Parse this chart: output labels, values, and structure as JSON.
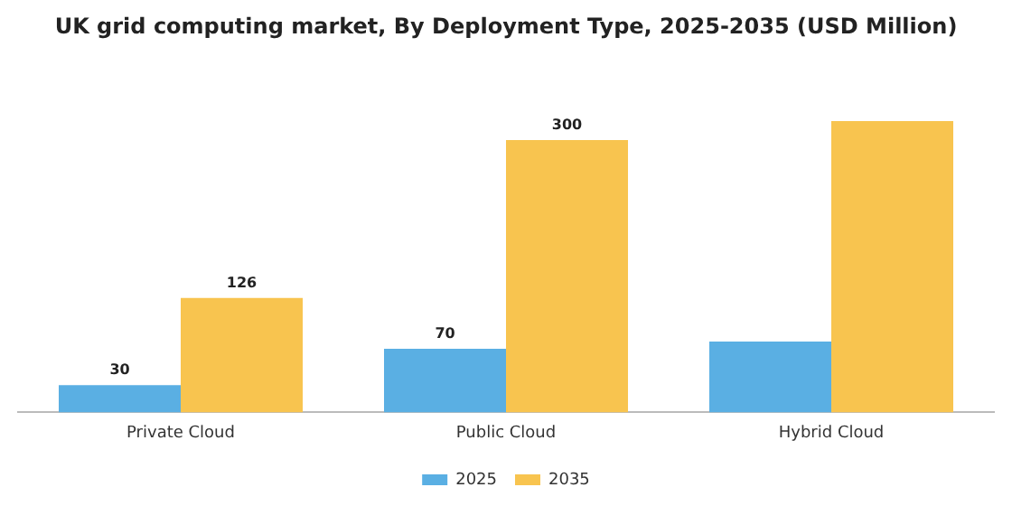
{
  "chart_data": {
    "type": "bar",
    "title": "UK grid computing market, By Deployment Type, 2025-2035 (USD Million)",
    "categories": [
      "Private Cloud",
      "Public Cloud",
      "Hybrid Cloud"
    ],
    "series": [
      {
        "name": "2025",
        "color": "#5aafe3",
        "values": [
          30,
          70,
          78
        ],
        "value_labels": [
          "30",
          "70",
          null
        ]
      },
      {
        "name": "2035",
        "color": "#f8c44f",
        "values": [
          126,
          300,
          321
        ],
        "value_labels": [
          "126",
          "300",
          null
        ]
      }
    ],
    "legend": "bottom",
    "grid": false
  }
}
